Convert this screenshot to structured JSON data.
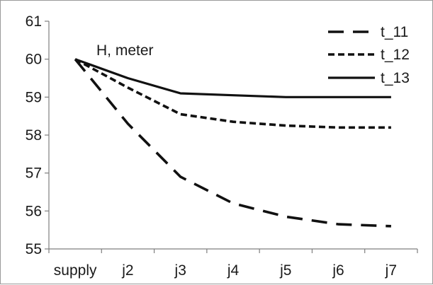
{
  "chart_data": {
    "type": "line",
    "categories": [
      "supply",
      "j2",
      "j3",
      "j4",
      "j5",
      "j6",
      "j7"
    ],
    "series": [
      {
        "name": "t_11",
        "values": [
          60.0,
          58.3,
          56.9,
          56.2,
          55.85,
          55.65,
          55.6
        ],
        "color": "#111111",
        "style": "long-dash"
      },
      {
        "name": "t_12",
        "values": [
          60.0,
          59.25,
          58.55,
          58.35,
          58.25,
          58.2,
          58.2
        ],
        "color": "#111111",
        "style": "short-dash"
      },
      {
        "name": "t_13",
        "values": [
          60.0,
          59.5,
          59.1,
          59.05,
          59.0,
          59.0,
          59.0
        ],
        "color": "#111111",
        "style": "solid"
      }
    ],
    "ylim": [
      55,
      61
    ],
    "yticks": [
      55,
      56,
      57,
      58,
      59,
      60,
      61
    ],
    "annotation": "H, meter",
    "grid": false,
    "legend_position": "top-right"
  }
}
